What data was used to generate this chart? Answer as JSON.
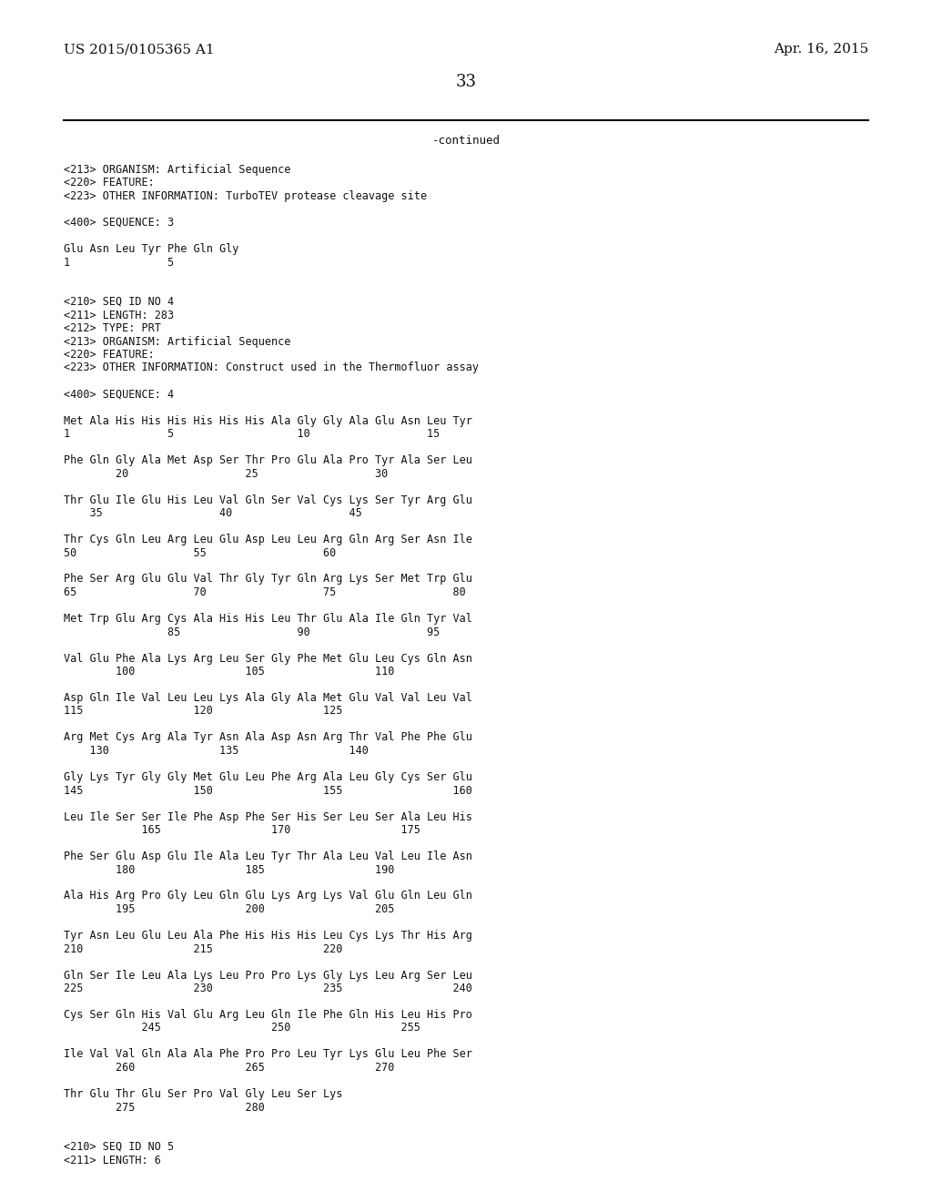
{
  "background_color": "#ffffff",
  "header_left": "US 2015/0105365 A1",
  "header_right": "Apr. 16, 2015",
  "page_number": "33",
  "continued_label": "-continued",
  "body_lines": [
    "<213> ORGANISM: Artificial Sequence",
    "<220> FEATURE:",
    "<223> OTHER INFORMATION: TurboTEV protease cleavage site",
    "",
    "<400> SEQUENCE: 3",
    "",
    "Glu Asn Leu Tyr Phe Gln Gly",
    "1               5",
    "",
    "",
    "<210> SEQ ID NO 4",
    "<211> LENGTH: 283",
    "<212> TYPE: PRT",
    "<213> ORGANISM: Artificial Sequence",
    "<220> FEATURE:",
    "<223> OTHER INFORMATION: Construct used in the Thermofluor assay",
    "",
    "<400> SEQUENCE: 4",
    "",
    "Met Ala His His His His His His Ala Gly Gly Ala Glu Asn Leu Tyr",
    "1               5                   10                  15",
    "",
    "Phe Gln Gly Ala Met Asp Ser Thr Pro Glu Ala Pro Tyr Ala Ser Leu",
    "        20                  25                  30",
    "",
    "Thr Glu Ile Glu His Leu Val Gln Ser Val Cys Lys Ser Tyr Arg Glu",
    "    35                  40                  45",
    "",
    "Thr Cys Gln Leu Arg Leu Glu Asp Leu Leu Arg Gln Arg Ser Asn Ile",
    "50                  55                  60",
    "",
    "Phe Ser Arg Glu Glu Val Thr Gly Tyr Gln Arg Lys Ser Met Trp Glu",
    "65                  70                  75                  80",
    "",
    "Met Trp Glu Arg Cys Ala His His Leu Thr Glu Ala Ile Gln Tyr Val",
    "                85                  90                  95",
    "",
    "Val Glu Phe Ala Lys Arg Leu Ser Gly Phe Met Glu Leu Cys Gln Asn",
    "        100                 105                 110",
    "",
    "Asp Gln Ile Val Leu Leu Lys Ala Gly Ala Met Glu Val Val Leu Val",
    "115                 120                 125",
    "",
    "Arg Met Cys Arg Ala Tyr Asn Ala Asp Asn Arg Thr Val Phe Phe Glu",
    "    130                 135                 140",
    "",
    "Gly Lys Tyr Gly Gly Met Glu Leu Phe Arg Ala Leu Gly Cys Ser Glu",
    "145                 150                 155                 160",
    "",
    "Leu Ile Ser Ser Ile Phe Asp Phe Ser His Ser Leu Ser Ala Leu His",
    "            165                 170                 175",
    "",
    "Phe Ser Glu Asp Glu Ile Ala Leu Tyr Thr Ala Leu Val Leu Ile Asn",
    "        180                 185                 190",
    "",
    "Ala His Arg Pro Gly Leu Gln Glu Lys Arg Lys Val Glu Gln Leu Gln",
    "        195                 200                 205",
    "",
    "Tyr Asn Leu Glu Leu Ala Phe His His His Leu Cys Lys Thr His Arg",
    "210                 215                 220",
    "",
    "Gln Ser Ile Leu Ala Lys Leu Pro Pro Lys Gly Lys Leu Arg Ser Leu",
    "225                 230                 235                 240",
    "",
    "Cys Ser Gln His Val Glu Arg Leu Gln Ile Phe Gln His Leu His Pro",
    "            245                 250                 255",
    "",
    "Ile Val Val Gln Ala Ala Phe Pro Pro Leu Tyr Lys Glu Leu Phe Ser",
    "        260                 265                 270",
    "",
    "Thr Glu Thr Glu Ser Pro Val Gly Leu Ser Lys",
    "        275                 280",
    "",
    "",
    "<210> SEQ ID NO 5",
    "<211> LENGTH: 6"
  ],
  "font_size_header": 11,
  "font_size_page_num": 13,
  "font_size_body": 8.5,
  "font_size_continued": 9
}
